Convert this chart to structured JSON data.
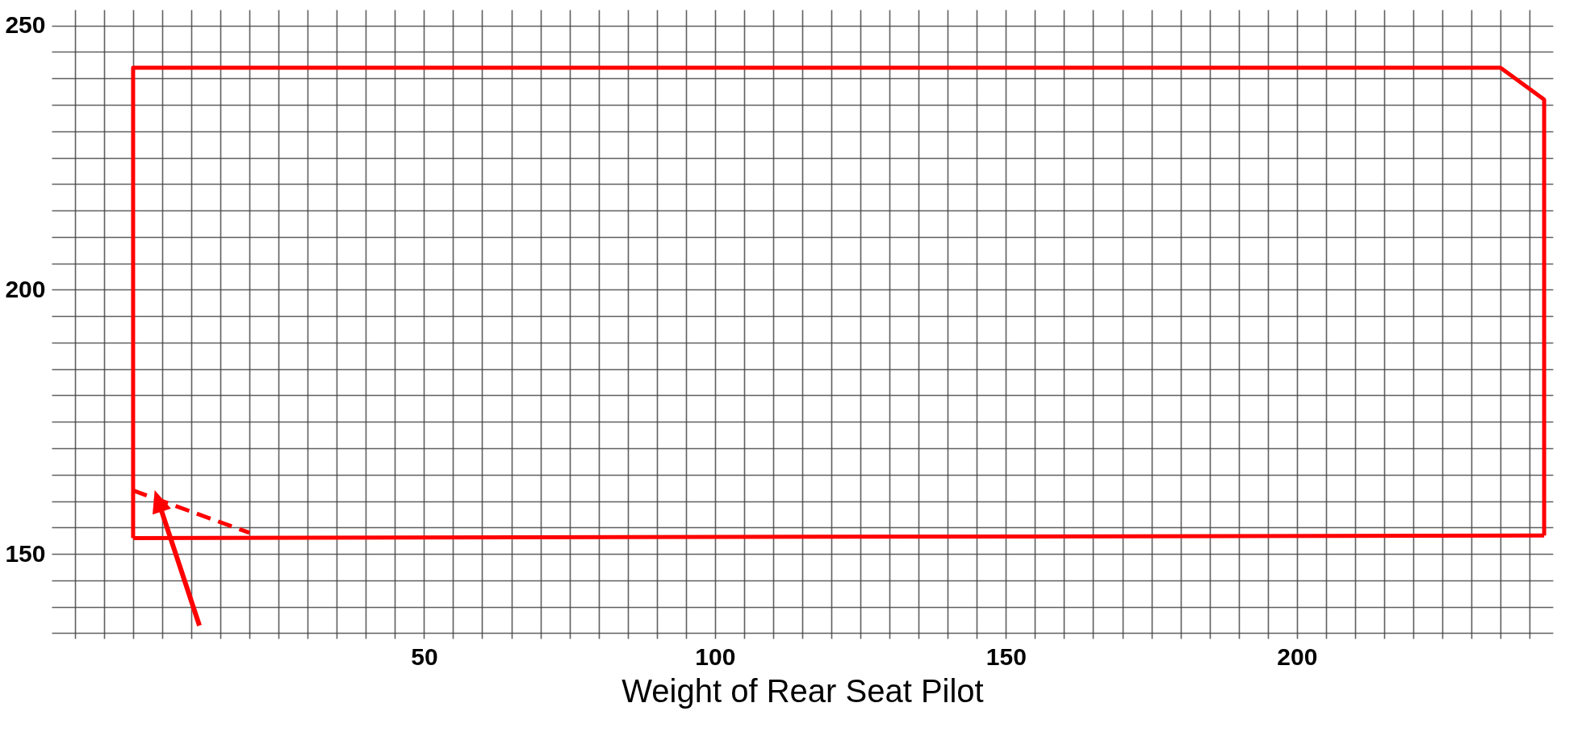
{
  "chart_data": {
    "type": "line",
    "xlabel": "Weight of Rear Seat Pilot",
    "xlim": [
      -14,
      244
    ],
    "ylim": [
      134,
      253
    ],
    "xticks": [
      {
        "value": -10,
        "label": null
      },
      {
        "value": -5,
        "label": null
      },
      {
        "value": 0,
        "label": null
      },
      {
        "value": 5,
        "label": null
      },
      {
        "value": 10,
        "label": null
      },
      {
        "value": 15,
        "label": null
      },
      {
        "value": 20,
        "label": null
      },
      {
        "value": 25,
        "label": null
      },
      {
        "value": 30,
        "label": null
      },
      {
        "value": 35,
        "label": null
      },
      {
        "value": 40,
        "label": null
      },
      {
        "value": 45,
        "label": null
      },
      50,
      {
        "value": 55,
        "label": null
      },
      {
        "value": 60,
        "label": null
      },
      {
        "value": 65,
        "label": null
      },
      {
        "value": 70,
        "label": null
      },
      {
        "value": 75,
        "label": null
      },
      {
        "value": 80,
        "label": null
      },
      {
        "value": 85,
        "label": null
      },
      {
        "value": 90,
        "label": null
      },
      {
        "value": 95,
        "label": null
      },
      100,
      {
        "value": 105,
        "label": null
      },
      {
        "value": 110,
        "label": null
      },
      {
        "value": 115,
        "label": null
      },
      {
        "value": 120,
        "label": null
      },
      {
        "value": 125,
        "label": null
      },
      {
        "value": 130,
        "label": null
      },
      {
        "value": 135,
        "label": null
      },
      {
        "value": 140,
        "label": null
      },
      {
        "value": 145,
        "label": null
      },
      150,
      {
        "value": 155,
        "label": null
      },
      {
        "value": 160,
        "label": null
      },
      {
        "value": 165,
        "label": null
      },
      {
        "value": 170,
        "label": null
      },
      {
        "value": 175,
        "label": null
      },
      {
        "value": 180,
        "label": null
      },
      {
        "value": 185,
        "label": null
      },
      {
        "value": 190,
        "label": null
      },
      {
        "value": 195,
        "label": null
      },
      200,
      {
        "value": 205,
        "label": null
      },
      {
        "value": 210,
        "label": null
      },
      {
        "value": 215,
        "label": null
      },
      {
        "value": 220,
        "label": null
      },
      {
        "value": 225,
        "label": null
      },
      {
        "value": 230,
        "label": null
      },
      {
        "value": 235,
        "label": null
      },
      {
        "value": 240,
        "label": null
      }
    ],
    "yticks": [
      {
        "value": 135,
        "label": null
      },
      {
        "value": 140,
        "label": null
      },
      {
        "value": 145,
        "label": null
      },
      150,
      {
        "value": 155,
        "label": null
      },
      {
        "value": 160,
        "label": null
      },
      {
        "value": 165,
        "label": null
      },
      {
        "value": 170,
        "label": null
      },
      {
        "value": 175,
        "label": null
      },
      {
        "value": 180,
        "label": null
      },
      {
        "value": 185,
        "label": null
      },
      {
        "value": 190,
        "label": null
      },
      {
        "value": 195,
        "label": null
      },
      200,
      {
        "value": 205,
        "label": null
      },
      {
        "value": 210,
        "label": null
      },
      {
        "value": 215,
        "label": null
      },
      {
        "value": 220,
        "label": null
      },
      {
        "value": 225,
        "label": null
      },
      {
        "value": 230,
        "label": null
      },
      {
        "value": 235,
        "label": null
      },
      {
        "value": 240,
        "label": null
      },
      {
        "value": 245,
        "label": null
      },
      250
    ],
    "grid": true,
    "marker": "none",
    "series": [
      {
        "color": "#ff0000",
        "line_style": "dashed",
        "x": [
          0,
          20
        ],
        "values": [
          162,
          154
        ]
      },
      {
        "color": "#ff0000",
        "line_style": "solid",
        "x": [
          0,
          0,
          235,
          242.5,
          242.5
        ],
        "values": [
          153,
          242,
          242,
          236,
          153.5
        ]
      },
      {
        "color": "#ff0000",
        "line_style": "solid",
        "x": [
          0,
          242.5
        ],
        "values": [
          153,
          153.5
        ]
      }
    ]
  }
}
